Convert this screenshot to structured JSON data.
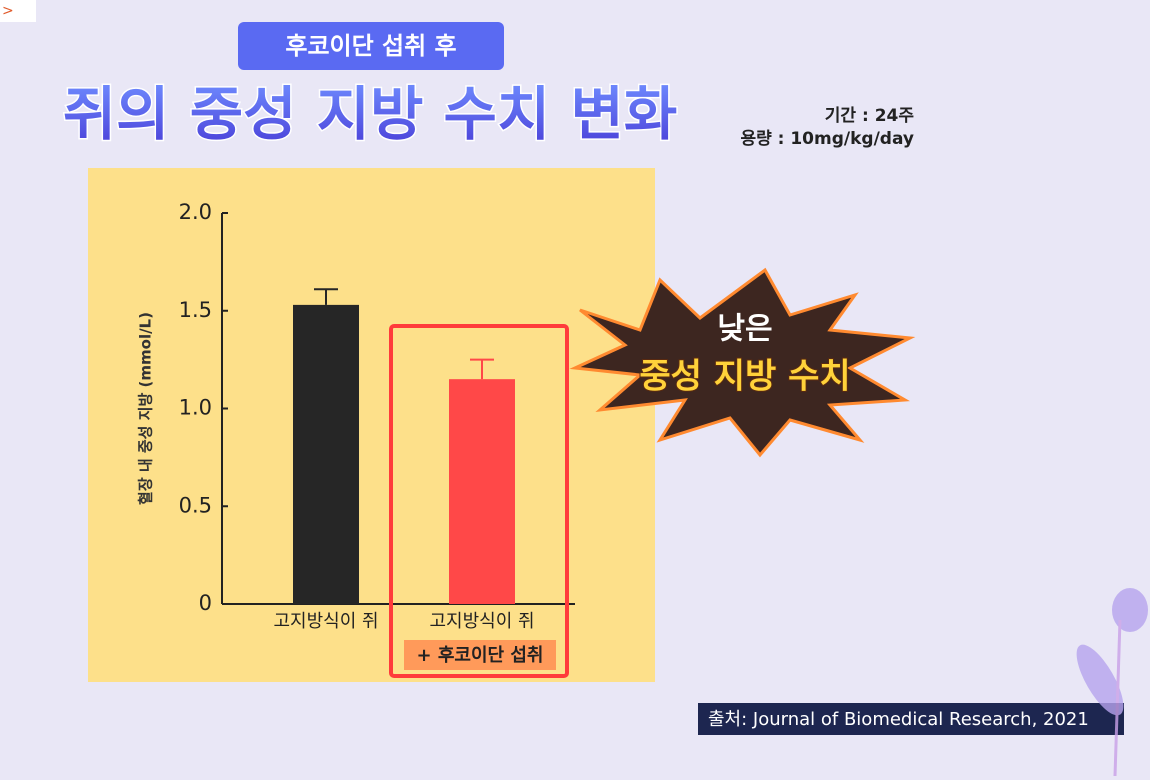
{
  "corner_mark": ">",
  "badge": "후코이단 섭취 후",
  "title": "쥐의 중성 지방 수치 변화",
  "study_info": [
    "기간 : 24주",
    "용량 : 10mg/kg/day"
  ],
  "callout": [
    "낮은",
    "중성 지방 수치"
  ],
  "source": "출처: Journal of Biomedical Research, 2021",
  "chart_data": {
    "type": "bar",
    "y_label": "혈장 내 중성 지방 (mmol/L)",
    "categories": [
      "고지방식이 쥐",
      "고지방식이 쥐"
    ],
    "highlight_label": "+ 후코이단 섭취",
    "values": [
      1.53,
      1.15
    ],
    "errors": [
      0.08,
      0.1
    ],
    "colors": [
      "#262626",
      "#ff4848"
    ],
    "ylim": [
      0,
      2
    ],
    "yticks": [
      0,
      0.5,
      {
        "value": 1,
        "label": "1.0"
      },
      1.5,
      {
        "value": 2,
        "label": "2.0"
      }
    ]
  }
}
